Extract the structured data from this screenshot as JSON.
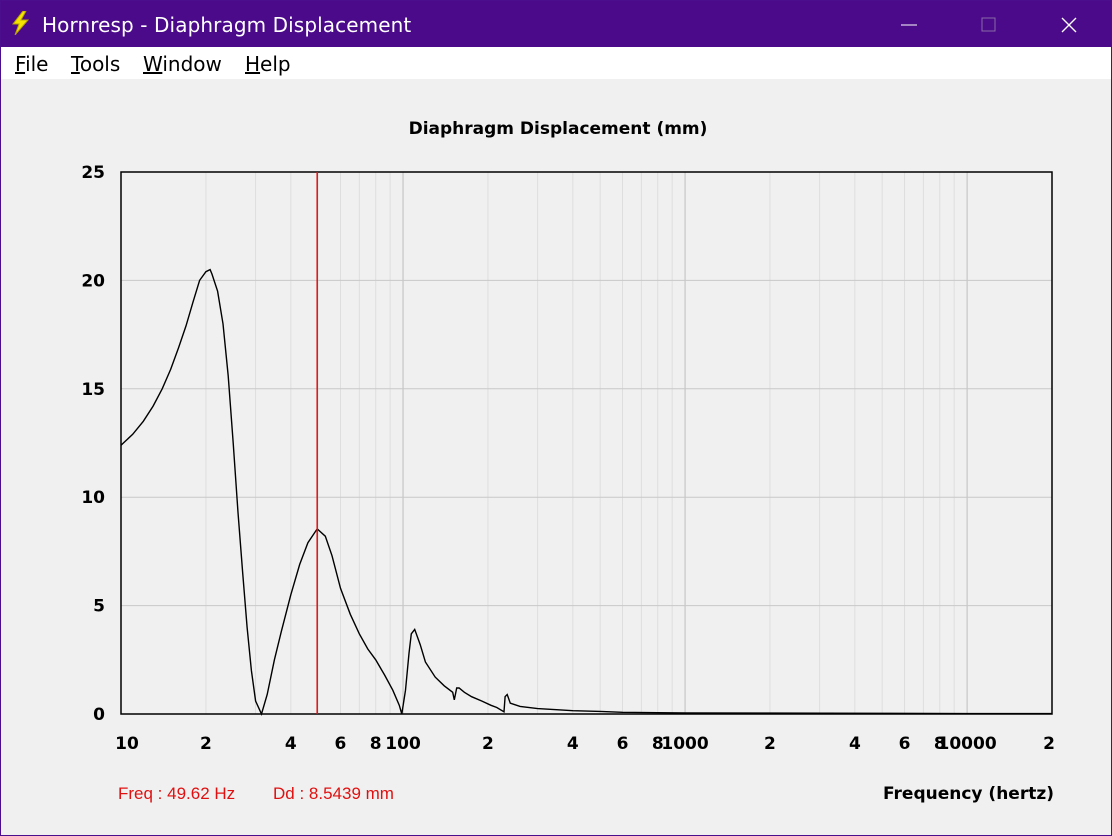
{
  "window": {
    "title": "Hornresp - Diaphragm Displacement",
    "controls": {
      "minimize": "minimize-icon",
      "maximize": "maximize-icon",
      "close": "close-icon"
    }
  },
  "menu": {
    "items": [
      {
        "first": "F",
        "rest": "ile"
      },
      {
        "first": "T",
        "rest": "ools"
      },
      {
        "first": "W",
        "rest": "indow"
      },
      {
        "first": "H",
        "rest": "elp"
      }
    ]
  },
  "colors": {
    "titlebar": "#4b0a8a",
    "trace": "#000000",
    "marker": "#e01010",
    "readout": "#e01010",
    "grid": "#c8c8c8"
  },
  "readout": {
    "freq": "Freq : 49.62 Hz",
    "dd": "Dd : 8.5439 mm"
  },
  "chart_data": {
    "type": "line",
    "title": "Diaphragm Displacement (mm)",
    "xlabel": "Frequency (hertz)",
    "ylabel": "",
    "x_scale": "log",
    "xlim": [
      10,
      20000
    ],
    "ylim": [
      0,
      25
    ],
    "grid": true,
    "y_ticks": [
      0,
      5,
      10,
      15,
      20,
      25
    ],
    "y_tick_labels": [
      "0",
      "5",
      "10",
      "15",
      "20",
      "25"
    ],
    "x_tick_labels": [
      {
        "value": 10,
        "label": "10"
      },
      {
        "value": 20,
        "label": "2"
      },
      {
        "value": 40,
        "label": "4"
      },
      {
        "value": 60,
        "label": "6"
      },
      {
        "value": 80,
        "label": "8"
      },
      {
        "value": 100,
        "label": "100"
      },
      {
        "value": 200,
        "label": "2"
      },
      {
        "value": 400,
        "label": "4"
      },
      {
        "value": 600,
        "label": "6"
      },
      {
        "value": 800,
        "label": "8"
      },
      {
        "value": 1000,
        "label": "1000"
      },
      {
        "value": 2000,
        "label": "2"
      },
      {
        "value": 4000,
        "label": "4"
      },
      {
        "value": 6000,
        "label": "6"
      },
      {
        "value": 8000,
        "label": "8"
      },
      {
        "value": 10000,
        "label": "10000"
      },
      {
        "value": 20000,
        "label": "2"
      }
    ],
    "marker_x": 49.62,
    "series": [
      {
        "x": [
          10,
          11,
          12,
          13,
          14,
          15,
          16,
          17,
          18,
          19,
          20,
          20.7,
          21,
          22,
          23,
          24,
          25,
          26,
          27,
          28,
          29,
          30,
          31.5,
          33,
          35,
          37,
          40,
          43,
          46,
          49.62,
          53,
          56,
          60,
          65,
          70,
          75,
          80,
          86,
          92,
          97,
          99,
          102,
          105,
          107,
          110,
          115,
          120,
          130,
          140,
          150,
          152,
          155,
          158,
          165,
          175,
          190,
          205,
          215,
          228,
          230,
          234,
          240,
          260,
          300,
          350,
          400,
          500,
          600,
          800,
          1000,
          2000,
          5000,
          10000,
          20000
        ],
        "y": [
          12.4,
          12.9,
          13.5,
          14.2,
          15.0,
          15.9,
          16.9,
          17.9,
          19.0,
          20.0,
          20.4,
          20.5,
          20.3,
          19.5,
          18.0,
          15.6,
          12.5,
          9.3,
          6.5,
          4.0,
          2.0,
          0.6,
          0.0,
          0.9,
          2.5,
          3.8,
          5.5,
          6.9,
          7.9,
          8.54,
          8.2,
          7.3,
          5.8,
          4.6,
          3.7,
          3.0,
          2.5,
          1.8,
          1.1,
          0.4,
          0.0,
          1.1,
          2.8,
          3.7,
          3.9,
          3.2,
          2.4,
          1.7,
          1.3,
          1.0,
          0.65,
          1.2,
          1.2,
          1.0,
          0.8,
          0.6,
          0.4,
          0.3,
          0.1,
          0.8,
          0.9,
          0.5,
          0.35,
          0.25,
          0.2,
          0.15,
          0.12,
          0.08,
          0.06,
          0.05,
          0.04,
          0.03,
          0.02,
          0.02
        ]
      }
    ]
  }
}
